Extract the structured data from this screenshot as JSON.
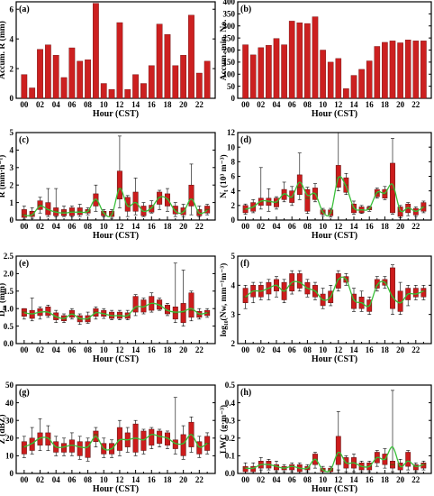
{
  "colors": {
    "bar": "#cc2020",
    "box": "#cc1c1c",
    "median": "#6b4a10",
    "line": "#39c039",
    "axis": "#000000"
  },
  "chart_data": [
    {
      "id": "a",
      "type": "bar",
      "panel_label": "(a)",
      "xlabel": "Hour (CST)",
      "ylabel": "Accum. R (mm)",
      "ylim": [
        0,
        6.5
      ],
      "yticks": [
        0,
        2,
        4,
        6
      ],
      "xticks": [
        "00",
        "02",
        "04",
        "06",
        "08",
        "10",
        "12",
        "14",
        "16",
        "18",
        "20",
        "22"
      ],
      "x": [
        0,
        1,
        2,
        3,
        4,
        5,
        6,
        7,
        8,
        9,
        10,
        11,
        12,
        13,
        14,
        15,
        16,
        17,
        18,
        19,
        20,
        21,
        22,
        23
      ],
      "values": [
        1.6,
        0.7,
        3.3,
        3.6,
        2.9,
        1.4,
        3.4,
        2.5,
        2.6,
        6.4,
        1.0,
        0.6,
        5.1,
        0.6,
        1.6,
        1.0,
        2.2,
        5.0,
        4.3,
        2.2,
        2.9,
        5.6,
        1.7,
        2.5
      ]
    },
    {
      "id": "b",
      "type": "bar",
      "panel_label": "(b)",
      "xlabel": "Hour (CST)",
      "ylabel": "Accum. min. No.",
      "ylim": [
        0,
        400
      ],
      "yticks": [
        0,
        50,
        100,
        150,
        200,
        250,
        300,
        350,
        400
      ],
      "xticks": [
        "00",
        "02",
        "04",
        "06",
        "08",
        "10",
        "12",
        "14",
        "16",
        "18",
        "20",
        "22"
      ],
      "x": [
        0,
        1,
        2,
        3,
        4,
        5,
        6,
        7,
        8,
        9,
        10,
        11,
        12,
        13,
        14,
        15,
        16,
        17,
        18,
        19,
        20,
        21,
        22,
        23
      ],
      "values": [
        222,
        180,
        210,
        220,
        248,
        222,
        320,
        313,
        310,
        338,
        200,
        150,
        165,
        40,
        95,
        120,
        155,
        215,
        232,
        238,
        230,
        242,
        238,
        238
      ]
    },
    {
      "id": "c",
      "type": "box",
      "panel_label": "(c)",
      "xlabel": "Hour (CST)",
      "ylabel": "R (mm·h⁻¹)",
      "ylim": [
        0,
        5
      ],
      "yticks": [
        0,
        1,
        2,
        3,
        4,
        5
      ],
      "xticks": [
        "00",
        "02",
        "04",
        "06",
        "08",
        "10",
        "12",
        "14",
        "16",
        "18",
        "20",
        "22"
      ],
      "x": [
        0,
        1,
        2,
        3,
        4,
        5,
        6,
        7,
        8,
        9,
        10,
        11,
        12,
        13,
        14,
        15,
        16,
        17,
        18,
        19,
        20,
        21,
        22,
        23
      ],
      "box_low": [
        0.15,
        0.2,
        0.6,
        0.3,
        0.25,
        0.25,
        0.25,
        0.3,
        0.4,
        0.8,
        0.25,
        0.2,
        1.2,
        0.5,
        0.5,
        0.25,
        0.45,
        0.9,
        0.8,
        0.35,
        0.3,
        0.8,
        0.25,
        0.4
      ],
      "box_high": [
        0.6,
        0.5,
        1.1,
        1.0,
        0.7,
        0.6,
        0.7,
        0.7,
        0.6,
        1.5,
        0.5,
        0.5,
        2.8,
        1.3,
        1.6,
        0.8,
        0.85,
        1.6,
        1.5,
        0.8,
        0.7,
        2.0,
        0.6,
        0.8
      ],
      "median": [
        0.3,
        0.3,
        0.85,
        0.6,
        0.5,
        0.45,
        0.5,
        0.5,
        0.5,
        1.1,
        0.4,
        0.35,
        1.8,
        0.9,
        1.0,
        0.5,
        0.7,
        1.3,
        1.2,
        0.6,
        0.5,
        1.2,
        0.4,
        0.6
      ],
      "whisker_low": [
        0.05,
        0.1,
        0.4,
        0.2,
        0.2,
        0.2,
        0.2,
        0.2,
        0.3,
        0.5,
        0.2,
        0.1,
        0.7,
        0.2,
        0.3,
        0.2,
        0.4,
        0.6,
        0.5,
        0.2,
        0.2,
        0.3,
        0.2,
        0.3
      ],
      "whisker_high": [
        0.8,
        0.7,
        1.3,
        1.8,
        1.8,
        0.8,
        0.8,
        0.9,
        0.7,
        2.0,
        0.6,
        0.6,
        4.8,
        1.4,
        2.4,
        1.0,
        1.1,
        1.7,
        1.8,
        1.0,
        0.9,
        3.2,
        0.8,
        0.9
      ],
      "mean": [
        0.25,
        0.3,
        0.8,
        0.6,
        0.45,
        0.4,
        0.45,
        0.45,
        0.5,
        1.2,
        0.4,
        0.3,
        1.8,
        0.8,
        1.0,
        0.5,
        0.7,
        1.3,
        1.2,
        0.5,
        0.45,
        1.2,
        0.4,
        0.55
      ]
    },
    {
      "id": "d",
      "type": "box",
      "panel_label": "(d)",
      "xlabel": "Hour (CST)",
      "ylabel": "N_t (10³ m⁻³)",
      "ylim": [
        0,
        12
      ],
      "yticks": [
        0,
        2,
        4,
        6,
        8,
        10,
        12
      ],
      "xticks": [
        "00",
        "02",
        "04",
        "06",
        "08",
        "10",
        "12",
        "14",
        "16",
        "18",
        "20",
        "22"
      ],
      "x": [
        0,
        1,
        2,
        3,
        4,
        5,
        6,
        7,
        8,
        9,
        10,
        11,
        12,
        13,
        14,
        15,
        16,
        17,
        18,
        19,
        20,
        21,
        22,
        23
      ],
      "box_low": [
        1.0,
        1.2,
        2.0,
        2.0,
        1.8,
        2.8,
        2.4,
        3.5,
        1.2,
        2.8,
        0.8,
        0.6,
        4.5,
        3.8,
        1.0,
        1.0,
        1.4,
        3.2,
        3.0,
        1.0,
        0.5,
        1.0,
        0.7,
        1.2
      ],
      "box_high": [
        2.0,
        2.4,
        3.0,
        3.0,
        3.0,
        4.2,
        4.0,
        6.2,
        4.2,
        4.4,
        1.4,
        1.4,
        7.5,
        5.8,
        2.2,
        1.8,
        1.8,
        4.2,
        4.2,
        7.8,
        1.8,
        2.2,
        1.6,
        2.4
      ],
      "median": [
        1.5,
        1.8,
        2.5,
        2.5,
        2.4,
        3.5,
        3.1,
        4.5,
        3.0,
        3.6,
        1.1,
        1.0,
        5.8,
        4.8,
        1.6,
        1.4,
        1.6,
        3.7,
        3.6,
        4.2,
        1.2,
        1.6,
        1.2,
        1.8
      ],
      "whisker_low": [
        0.8,
        1.0,
        1.5,
        1.2,
        1.5,
        2.5,
        2.0,
        2.8,
        0.9,
        2.5,
        0.6,
        0.4,
        4.0,
        3.5,
        0.8,
        0.9,
        1.2,
        3.0,
        2.8,
        0.8,
        0.3,
        0.6,
        0.5,
        1.0
      ],
      "whisker_high": [
        2.2,
        2.8,
        7.2,
        4.3,
        3.2,
        5.2,
        4.6,
        9.2,
        4.5,
        5.0,
        1.6,
        1.6,
        12.0,
        6.4,
        2.6,
        2.0,
        1.9,
        4.4,
        4.6,
        11.2,
        2.0,
        2.4,
        1.8,
        2.6
      ],
      "mean": [
        1.5,
        1.8,
        2.6,
        2.6,
        2.5,
        3.6,
        3.2,
        5.2,
        3.4,
        3.6,
        1.1,
        1.0,
        5.8,
        4.6,
        1.7,
        1.4,
        1.6,
        3.8,
        3.7,
        4.9,
        1.3,
        1.7,
        1.2,
        1.8
      ]
    },
    {
      "id": "e",
      "type": "box",
      "panel_label": "(e)",
      "xlabel": "Hour (CST)",
      "ylabel": "D_m (mm)",
      "ylim": [
        0,
        2.5
      ],
      "yticks": [
        0,
        0.5,
        1.0,
        1.5,
        2.0,
        2.5
      ],
      "ytick_labels": [
        "0.0",
        "0.5",
        "1.0",
        "1.5",
        "2.0",
        "2.5"
      ],
      "xticks": [
        "00",
        "02",
        "04",
        "06",
        "08",
        "10",
        "12",
        "14",
        "16",
        "18",
        "20",
        "22"
      ],
      "x": [
        0,
        1,
        2,
        3,
        4,
        5,
        6,
        7,
        8,
        9,
        10,
        11,
        12,
        13,
        14,
        15,
        16,
        17,
        18,
        19,
        20,
        21,
        22,
        23
      ],
      "box_low": [
        0.78,
        0.72,
        0.8,
        0.8,
        0.68,
        0.65,
        0.75,
        0.62,
        0.62,
        0.78,
        0.78,
        0.72,
        0.72,
        0.72,
        0.9,
        0.9,
        0.95,
        0.98,
        0.85,
        0.7,
        0.6,
        0.75,
        0.75,
        0.8
      ],
      "box_high": [
        1.0,
        0.95,
        1.0,
        1.05,
        0.88,
        0.8,
        0.95,
        0.8,
        0.8,
        1.0,
        0.95,
        0.9,
        0.9,
        0.88,
        1.35,
        1.25,
        1.35,
        1.25,
        1.1,
        1.05,
        1.15,
        1.45,
        0.92,
        0.95
      ],
      "median": [
        0.9,
        0.85,
        0.9,
        0.9,
        0.76,
        0.72,
        0.85,
        0.7,
        0.7,
        0.9,
        0.86,
        0.8,
        0.8,
        0.8,
        1.0,
        1.05,
        1.15,
        1.1,
        0.95,
        0.88,
        0.9,
        0.95,
        0.84,
        0.88
      ],
      "whisker_low": [
        0.7,
        0.65,
        0.7,
        0.75,
        0.6,
        0.6,
        0.7,
        0.55,
        0.58,
        0.7,
        0.72,
        0.68,
        0.68,
        0.68,
        0.8,
        0.85,
        0.9,
        0.95,
        0.8,
        0.6,
        0.5,
        0.65,
        0.7,
        0.75
      ],
      "whisker_high": [
        1.0,
        1.3,
        1.05,
        1.1,
        0.95,
        0.85,
        1.0,
        0.85,
        0.9,
        1.05,
        1.0,
        0.95,
        0.95,
        0.95,
        1.4,
        1.3,
        1.45,
        1.3,
        1.15,
        2.3,
        2.1,
        1.5,
        1.0,
        1.0
      ],
      "mean": [
        0.88,
        0.85,
        0.9,
        0.9,
        0.77,
        0.72,
        0.84,
        0.72,
        0.72,
        0.88,
        0.85,
        0.8,
        0.8,
        0.8,
        1.05,
        1.05,
        1.15,
        1.1,
        0.95,
        0.9,
        0.92,
        1.0,
        0.85,
        0.88
      ]
    },
    {
      "id": "f",
      "type": "box",
      "panel_label": "(f)",
      "xlabel": "Hour (CST)",
      "ylabel": "log₁₀(Nw, mm⁻¹m⁻³)",
      "ylim": [
        2,
        5
      ],
      "yticks": [
        2,
        3,
        4,
        5
      ],
      "xticks": [
        "00",
        "02",
        "04",
        "06",
        "08",
        "10",
        "12",
        "14",
        "16",
        "18",
        "20",
        "22"
      ],
      "x": [
        0,
        1,
        2,
        3,
        4,
        5,
        6,
        7,
        8,
        9,
        10,
        11,
        12,
        13,
        14,
        15,
        16,
        17,
        18,
        19,
        20,
        21,
        22,
        23
      ],
      "box_low": [
        3.4,
        3.6,
        3.6,
        3.7,
        3.8,
        3.5,
        3.8,
        3.9,
        3.7,
        3.6,
        3.3,
        3.4,
        3.9,
        4.1,
        3.2,
        3.2,
        3.1,
        3.9,
        4.0,
        3.2,
        3.1,
        3.5,
        3.6,
        3.6
      ],
      "box_high": [
        3.9,
        4.0,
        4.0,
        4.1,
        4.2,
        4.1,
        4.4,
        4.4,
        4.1,
        4.0,
        3.7,
        3.8,
        4.4,
        4.3,
        3.7,
        3.6,
        3.5,
        4.2,
        4.2,
        4.6,
        3.8,
        3.9,
        3.9,
        3.9
      ],
      "median": [
        3.6,
        3.8,
        3.8,
        3.9,
        4.0,
        3.8,
        4.0,
        4.1,
        3.9,
        3.8,
        3.5,
        3.6,
        4.2,
        4.2,
        3.5,
        3.4,
        3.3,
        4.0,
        4.1,
        3.6,
        3.4,
        3.7,
        3.7,
        3.8
      ],
      "whisker_low": [
        3.2,
        3.4,
        3.5,
        3.5,
        3.6,
        3.4,
        3.7,
        3.8,
        3.6,
        3.5,
        3.2,
        3.3,
        3.8,
        4.0,
        3.1,
        3.1,
        3.0,
        3.8,
        3.9,
        3.0,
        3.0,
        3.3,
        3.5,
        3.5
      ],
      "whisker_high": [
        4.0,
        4.1,
        4.1,
        4.2,
        4.3,
        4.2,
        4.5,
        4.5,
        4.2,
        4.1,
        3.9,
        4.0,
        4.5,
        4.4,
        3.9,
        3.8,
        3.6,
        4.3,
        4.3,
        4.7,
        4.1,
        4.0,
        4.0,
        4.0
      ],
      "mean": [
        3.6,
        3.8,
        3.8,
        3.9,
        4.0,
        3.8,
        4.1,
        4.1,
        3.9,
        3.8,
        3.5,
        3.6,
        4.2,
        4.2,
        3.5,
        3.4,
        3.3,
        4.0,
        4.1,
        3.6,
        3.4,
        3.7,
        3.7,
        3.8
      ]
    },
    {
      "id": "g",
      "type": "box",
      "panel_label": "(g)",
      "xlabel": "Hour (CST)",
      "ylabel": "Z (dBZ)",
      "ylim": [
        0,
        50
      ],
      "yticks": [
        0,
        10,
        20,
        30,
        40,
        50
      ],
      "xticks": [
        "00",
        "02",
        "04",
        "06",
        "08",
        "10",
        "12",
        "14",
        "16",
        "18",
        "20",
        "22"
      ],
      "x": [
        0,
        1,
        2,
        3,
        4,
        5,
        6,
        7,
        8,
        9,
        10,
        11,
        12,
        13,
        14,
        15,
        16,
        17,
        18,
        19,
        20,
        21,
        22,
        23
      ],
      "box_low": [
        11,
        13,
        16,
        16,
        12,
        12,
        12,
        10,
        9,
        18,
        11,
        11,
        13,
        15,
        12,
        13,
        16,
        17,
        16,
        14,
        10,
        15,
        11,
        13
      ],
      "box_high": [
        18,
        20,
        23,
        23,
        18,
        17,
        19,
        18,
        18,
        24,
        17,
        17,
        26,
        23,
        28,
        24,
        25,
        24,
        23,
        19,
        22,
        29,
        18,
        21
      ],
      "median": [
        15,
        17,
        20,
        20,
        15,
        15,
        16,
        15,
        15,
        22,
        14,
        14,
        19,
        19,
        20,
        19,
        22,
        21,
        20,
        17,
        17,
        22,
        15,
        17
      ],
      "whisker_low": [
        9,
        11,
        13,
        13,
        10,
        10,
        10,
        8,
        7,
        15,
        9,
        9,
        10,
        12,
        10,
        11,
        14,
        15,
        14,
        11,
        8,
        12,
        9,
        11
      ],
      "whisker_high": [
        21,
        26,
        31,
        27,
        21,
        20,
        23,
        21,
        20,
        26,
        20,
        19,
        30,
        26,
        30,
        25,
        26,
        25,
        24,
        43,
        27,
        32,
        21,
        23
      ],
      "mean": [
        15,
        17,
        20,
        20,
        15,
        15,
        16,
        15,
        15,
        21,
        14,
        14,
        19,
        19,
        20,
        19,
        22,
        21,
        20,
        17,
        17,
        22,
        15,
        17
      ]
    },
    {
      "id": "h",
      "type": "box",
      "panel_label": "(h)",
      "xlabel": "Hour (CST)",
      "ylabel": "LWC (g·m⁻³)",
      "ylim": [
        0,
        0.5
      ],
      "yticks": [
        0,
        0.1,
        0.2,
        0.3,
        0.4,
        0.5
      ],
      "ytick_labels": [
        "0.0",
        "0.1",
        "0.2",
        "0.3",
        "0.4",
        "0.5"
      ],
      "xticks": [
        "00",
        "02",
        "04",
        "06",
        "08",
        "10",
        "12",
        "14",
        "16",
        "18",
        "20",
        "22"
      ],
      "x": [
        0,
        1,
        2,
        3,
        4,
        5,
        6,
        7,
        8,
        9,
        10,
        11,
        12,
        13,
        14,
        15,
        16,
        17,
        18,
        19,
        20,
        21,
        22,
        23
      ],
      "box_low": [
        0.01,
        0.01,
        0.03,
        0.03,
        0.02,
        0.02,
        0.02,
        0.01,
        0.02,
        0.05,
        0.01,
        0.01,
        0.05,
        0.03,
        0.03,
        0.02,
        0.02,
        0.06,
        0.05,
        0.03,
        0.02,
        0.04,
        0.02,
        0.03
      ],
      "box_high": [
        0.04,
        0.04,
        0.07,
        0.07,
        0.05,
        0.04,
        0.05,
        0.05,
        0.04,
        0.11,
        0.03,
        0.03,
        0.21,
        0.09,
        0.09,
        0.06,
        0.06,
        0.12,
        0.11,
        0.07,
        0.06,
        0.12,
        0.05,
        0.06
      ],
      "median": [
        0.03,
        0.03,
        0.05,
        0.05,
        0.04,
        0.03,
        0.04,
        0.03,
        0.03,
        0.08,
        0.02,
        0.02,
        0.1,
        0.06,
        0.06,
        0.04,
        0.04,
        0.09,
        0.08,
        0.05,
        0.04,
        0.07,
        0.04,
        0.05
      ],
      "whisker_low": [
        0.0,
        0.0,
        0.02,
        0.02,
        0.01,
        0.01,
        0.01,
        0.0,
        0.01,
        0.03,
        0.0,
        0.0,
        0.02,
        0.01,
        0.01,
        0.01,
        0.01,
        0.04,
        0.03,
        0.01,
        0.0,
        0.02,
        0.01,
        0.02
      ],
      "whisker_high": [
        0.06,
        0.06,
        0.09,
        0.08,
        0.07,
        0.05,
        0.06,
        0.06,
        0.05,
        0.12,
        0.04,
        0.04,
        0.35,
        0.1,
        0.11,
        0.07,
        0.07,
        0.13,
        0.14,
        0.47,
        0.08,
        0.13,
        0.06,
        0.07
      ],
      "mean": [
        0.03,
        0.03,
        0.05,
        0.05,
        0.04,
        0.03,
        0.04,
        0.03,
        0.03,
        0.08,
        0.02,
        0.02,
        0.12,
        0.06,
        0.06,
        0.04,
        0.04,
        0.09,
        0.08,
        0.15,
        0.04,
        0.07,
        0.04,
        0.05
      ]
    }
  ]
}
